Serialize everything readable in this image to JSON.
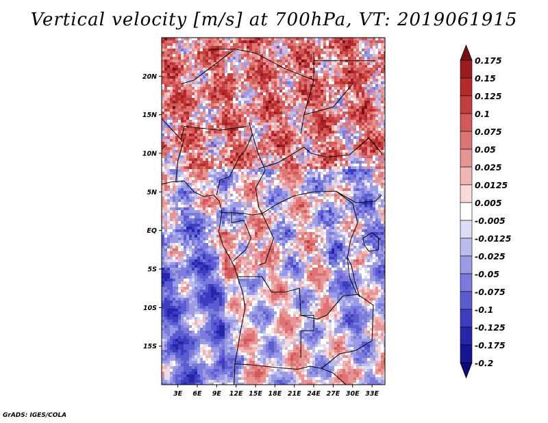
{
  "chart_data": {
    "type": "heatmap",
    "title": "Vertical velocity [m/s] at 700hPa, VT: 2019061915",
    "x_tick_labels": [
      "3E",
      "6E",
      "9E",
      "12E",
      "15E",
      "18E",
      "21E",
      "24E",
      "27E",
      "30E",
      "33E"
    ],
    "x_ticks": [
      3,
      6,
      9,
      12,
      15,
      18,
      21,
      24,
      27,
      30,
      33
    ],
    "xlim": [
      0.5,
      35
    ],
    "y_tick_labels": [
      "20N",
      "15N",
      "10N",
      "5N",
      "EQ",
      "5S",
      "10S",
      "15S"
    ],
    "y_ticks": [
      20,
      15,
      10,
      5,
      0,
      -5,
      -10,
      -15
    ],
    "ylim": [
      -20,
      25
    ],
    "colorbar": {
      "labels": [
        "0.175",
        "0.15",
        "0.125",
        "0.1",
        "0.075",
        "0.05",
        "0.025",
        "0.0125",
        "0.005",
        "-0.005",
        "-0.0125",
        "-0.025",
        "-0.05",
        "-0.075",
        "-0.1",
        "-0.125",
        "-0.175",
        "-0.2"
      ],
      "colors": [
        "#7a0d14",
        "#9d1c1f",
        "#b52a2a",
        "#c53e3e",
        "#d35858",
        "#de7575",
        "#e89494",
        "#f1b5b5",
        "#f9dada",
        "#ffffff",
        "#dcdcf7",
        "#bbbbee",
        "#9b9be5",
        "#7b7bdc",
        "#5c5cd2",
        "#3d3dc2",
        "#2626ad",
        "#151596",
        "#0a0a78"
      ],
      "extend": "both"
    },
    "footer": "GrADS: IGES/COLA"
  }
}
